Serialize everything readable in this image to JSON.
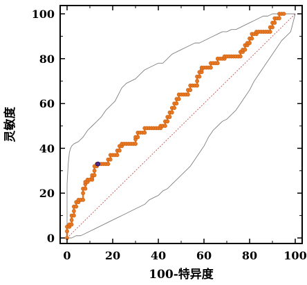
{
  "chart_data": {
    "type": "line",
    "xlabel": "100-特异度",
    "ylabel": "灵敏度",
    "xlim": [
      0,
      100
    ],
    "ylim": [
      0,
      100
    ],
    "xticks": [
      "0",
      "20",
      "40",
      "60",
      "80",
      "100"
    ],
    "yticks": [
      "0",
      "20",
      "40",
      "60",
      "80",
      "100"
    ],
    "grid": false,
    "series": [
      {
        "role": "roc-curve",
        "color": "#e87722",
        "marker": "circle",
        "points": [
          [
            0,
            0
          ],
          [
            0,
            3
          ],
          [
            0,
            5
          ],
          [
            1,
            5
          ],
          [
            1,
            6
          ],
          [
            2,
            6
          ],
          [
            2,
            8
          ],
          [
            2,
            10
          ],
          [
            3,
            10
          ],
          [
            3,
            12
          ],
          [
            3,
            14
          ],
          [
            4,
            14
          ],
          [
            4,
            16
          ],
          [
            5,
            16
          ],
          [
            5,
            17
          ],
          [
            6,
            17
          ],
          [
            7,
            17
          ],
          [
            7,
            20
          ],
          [
            7,
            22
          ],
          [
            8,
            22
          ],
          [
            8,
            24
          ],
          [
            8,
            25
          ],
          [
            9,
            25
          ],
          [
            9,
            26
          ],
          [
            10,
            26
          ],
          [
            11,
            26
          ],
          [
            11,
            27
          ],
          [
            11,
            28
          ],
          [
            12,
            28
          ],
          [
            12,
            30
          ],
          [
            12,
            32
          ],
          [
            13,
            32
          ],
          [
            13,
            33
          ],
          [
            14,
            33
          ],
          [
            15,
            33
          ],
          [
            16,
            33
          ],
          [
            17,
            33
          ],
          [
            18,
            33
          ],
          [
            18,
            35
          ],
          [
            19,
            35
          ],
          [
            19,
            37
          ],
          [
            20,
            37
          ],
          [
            21,
            37
          ],
          [
            22,
            37
          ],
          [
            22,
            39
          ],
          [
            23,
            39
          ],
          [
            23,
            41
          ],
          [
            24,
            41
          ],
          [
            24,
            42
          ],
          [
            25,
            42
          ],
          [
            26,
            42
          ],
          [
            27,
            42
          ],
          [
            28,
            42
          ],
          [
            29,
            42
          ],
          [
            30,
            42
          ],
          [
            30,
            44
          ],
          [
            30,
            45
          ],
          [
            31,
            45
          ],
          [
            31,
            47
          ],
          [
            32,
            47
          ],
          [
            33,
            47
          ],
          [
            34,
            47
          ],
          [
            34,
            49
          ],
          [
            35,
            49
          ],
          [
            36,
            49
          ],
          [
            37,
            49
          ],
          [
            38,
            49
          ],
          [
            39,
            49
          ],
          [
            40,
            49
          ],
          [
            41,
            49
          ],
          [
            41,
            50
          ],
          [
            42,
            50
          ],
          [
            43,
            50
          ],
          [
            43,
            52
          ],
          [
            44,
            52
          ],
          [
            44,
            54
          ],
          [
            45,
            54
          ],
          [
            45,
            56
          ],
          [
            46,
            56
          ],
          [
            46,
            58
          ],
          [
            47,
            58
          ],
          [
            47,
            60
          ],
          [
            48,
            60
          ],
          [
            48,
            62
          ],
          [
            49,
            62
          ],
          [
            49,
            64
          ],
          [
            50,
            64
          ],
          [
            51,
            64
          ],
          [
            52,
            64
          ],
          [
            53,
            64
          ],
          [
            53,
            66
          ],
          [
            54,
            66
          ],
          [
            54,
            68
          ],
          [
            55,
            68
          ],
          [
            56,
            68
          ],
          [
            57,
            68
          ],
          [
            57,
            70
          ],
          [
            57,
            72
          ],
          [
            58,
            72
          ],
          [
            58,
            74
          ],
          [
            59,
            74
          ],
          [
            59,
            75
          ],
          [
            59,
            76
          ],
          [
            60,
            76
          ],
          [
            61,
            76
          ],
          [
            62,
            76
          ],
          [
            63,
            76
          ],
          [
            63,
            78
          ],
          [
            64,
            78
          ],
          [
            65,
            78
          ],
          [
            66,
            78
          ],
          [
            66,
            80
          ],
          [
            67,
            80
          ],
          [
            68,
            80
          ],
          [
            69,
            80
          ],
          [
            69,
            81
          ],
          [
            70,
            81
          ],
          [
            71,
            81
          ],
          [
            72,
            81
          ],
          [
            73,
            81
          ],
          [
            74,
            81
          ],
          [
            75,
            81
          ],
          [
            76,
            81
          ],
          [
            76,
            83
          ],
          [
            77,
            83
          ],
          [
            77,
            84
          ],
          [
            78,
            84
          ],
          [
            78,
            86
          ],
          [
            79,
            86
          ],
          [
            79,
            87
          ],
          [
            80,
            87
          ],
          [
            80,
            89
          ],
          [
            81,
            89
          ],
          [
            81,
            91
          ],
          [
            82,
            91
          ],
          [
            83,
            91
          ],
          [
            83,
            92
          ],
          [
            84,
            92
          ],
          [
            85,
            92
          ],
          [
            86,
            92
          ],
          [
            87,
            92
          ],
          [
            88,
            92
          ],
          [
            89,
            92
          ],
          [
            89,
            94
          ],
          [
            90,
            94
          ],
          [
            90,
            96
          ],
          [
            91,
            96
          ],
          [
            91,
            98
          ],
          [
            92,
            98
          ],
          [
            93,
            98
          ],
          [
            93,
            100
          ],
          [
            94,
            100
          ],
          [
            95,
            100
          ]
        ]
      },
      {
        "role": "upper-confidence-bound",
        "color": "#7f7f7f",
        "points": [
          [
            0,
            0
          ],
          [
            0,
            12
          ],
          [
            0,
            24
          ],
          [
            0.5,
            33
          ],
          [
            1,
            38
          ],
          [
            1.5,
            40
          ],
          [
            2,
            41
          ],
          [
            3,
            42
          ],
          [
            5,
            43
          ],
          [
            7,
            45
          ],
          [
            9,
            48
          ],
          [
            11,
            50
          ],
          [
            13,
            52
          ],
          [
            15,
            54
          ],
          [
            17,
            57
          ],
          [
            19,
            59
          ],
          [
            21,
            61
          ],
          [
            22,
            63
          ],
          [
            23,
            65
          ],
          [
            24,
            67
          ],
          [
            25,
            68
          ],
          [
            26,
            69
          ],
          [
            28,
            70
          ],
          [
            30,
            71
          ],
          [
            31,
            72
          ],
          [
            33,
            74
          ],
          [
            34,
            75
          ],
          [
            36,
            76
          ],
          [
            38,
            77
          ],
          [
            40,
            78
          ],
          [
            42,
            78
          ],
          [
            44,
            80
          ],
          [
            46,
            82
          ],
          [
            48,
            83
          ],
          [
            50,
            84
          ],
          [
            52,
            85
          ],
          [
            54,
            86
          ],
          [
            56,
            87
          ],
          [
            58,
            87
          ],
          [
            60,
            88
          ],
          [
            62,
            89
          ],
          [
            64,
            90
          ],
          [
            66,
            91
          ],
          [
            68,
            92
          ],
          [
            70,
            92
          ],
          [
            72,
            93
          ],
          [
            74,
            93
          ],
          [
            76,
            94
          ],
          [
            78,
            95
          ],
          [
            80,
            96
          ],
          [
            82,
            97
          ],
          [
            84,
            98
          ],
          [
            86,
            99
          ],
          [
            88,
            99
          ],
          [
            90,
            100
          ],
          [
            92,
            100
          ],
          [
            94,
            100
          ],
          [
            96,
            100
          ],
          [
            98,
            100
          ],
          [
            100,
            100
          ]
        ]
      },
      {
        "role": "lower-confidence-bound",
        "color": "#7f7f7f",
        "points": [
          [
            0,
            0
          ],
          [
            2,
            0
          ],
          [
            4,
            1
          ],
          [
            6,
            1
          ],
          [
            8,
            2
          ],
          [
            10,
            3
          ],
          [
            12,
            4
          ],
          [
            14,
            5
          ],
          [
            16,
            6
          ],
          [
            18,
            7
          ],
          [
            20,
            8
          ],
          [
            22,
            9
          ],
          [
            24,
            10
          ],
          [
            26,
            11
          ],
          [
            28,
            12
          ],
          [
            30,
            13
          ],
          [
            32,
            14
          ],
          [
            34,
            15
          ],
          [
            36,
            17
          ],
          [
            38,
            18
          ],
          [
            40,
            19
          ],
          [
            42,
            21
          ],
          [
            44,
            22
          ],
          [
            46,
            24
          ],
          [
            48,
            26
          ],
          [
            50,
            28
          ],
          [
            52,
            30
          ],
          [
            54,
            32
          ],
          [
            56,
            35
          ],
          [
            58,
            38
          ],
          [
            60,
            41
          ],
          [
            62,
            45
          ],
          [
            64,
            48
          ],
          [
            66,
            50
          ],
          [
            68,
            52
          ],
          [
            70,
            53
          ],
          [
            72,
            55
          ],
          [
            74,
            57
          ],
          [
            76,
            60
          ],
          [
            78,
            63
          ],
          [
            80,
            66
          ],
          [
            82,
            70
          ],
          [
            84,
            73
          ],
          [
            86,
            76
          ],
          [
            88,
            79
          ],
          [
            90,
            82
          ],
          [
            92,
            85
          ],
          [
            94,
            88
          ],
          [
            96,
            90
          ],
          [
            98,
            92
          ],
          [
            99,
            96
          ],
          [
            100,
            100
          ]
        ]
      },
      {
        "role": "reference-diagonal",
        "color": "#c0504d",
        "points": [
          [
            0,
            0
          ],
          [
            100,
            100
          ]
        ]
      }
    ],
    "highlight_point": {
      "x": 13.5,
      "y": 33,
      "color": "#4b2a8a"
    }
  }
}
